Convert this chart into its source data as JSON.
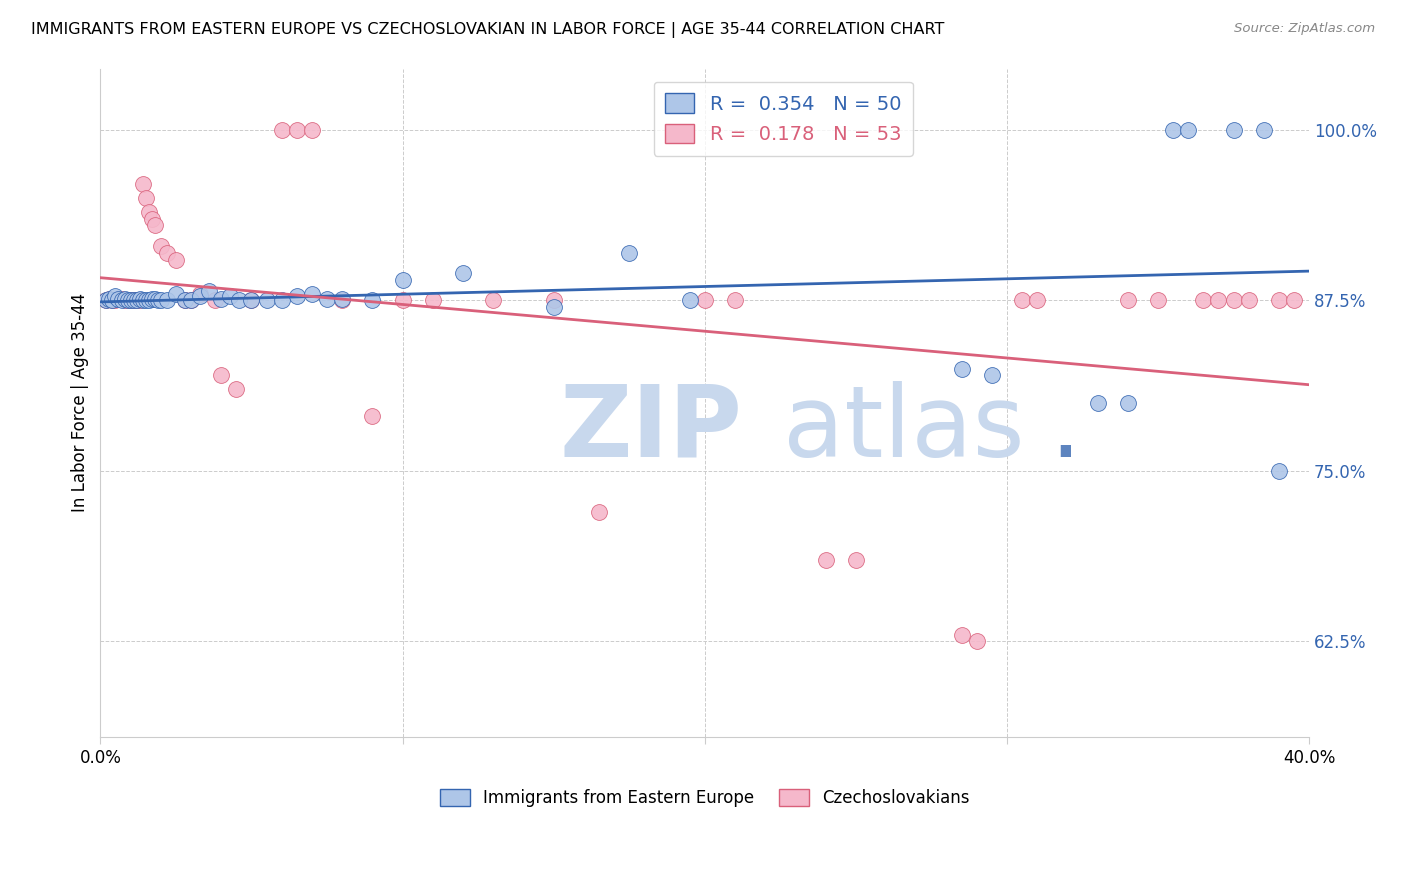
{
  "title": "IMMIGRANTS FROM EASTERN EUROPE VS CZECHOSLOVAKIAN IN LABOR FORCE | AGE 35-44 CORRELATION CHART",
  "source": "Source: ZipAtlas.com",
  "ylabel": "In Labor Force | Age 35-44",
  "y_ticks": [
    0.625,
    0.75,
    0.875,
    1.0
  ],
  "y_tick_labels": [
    "62.5%",
    "75.0%",
    "87.5%",
    "100.0%"
  ],
  "x_min": 0.0,
  "x_max": 0.4,
  "y_min": 0.555,
  "y_max": 1.045,
  "legend_blue_label": "Immigrants from Eastern Europe",
  "legend_pink_label": "Czechoslovakians",
  "r_blue": 0.354,
  "n_blue": 50,
  "r_pink": 0.178,
  "n_pink": 53,
  "blue_color": "#aec6e8",
  "pink_color": "#f5b8cb",
  "line_blue": "#3465b0",
  "line_pink": "#d9607a",
  "blue_x": [
    0.002,
    0.003,
    0.004,
    0.005,
    0.006,
    0.007,
    0.008,
    0.009,
    0.01,
    0.011,
    0.012,
    0.013,
    0.014,
    0.015,
    0.016,
    0.017,
    0.018,
    0.019,
    0.02,
    0.022,
    0.025,
    0.028,
    0.03,
    0.033,
    0.036,
    0.04,
    0.043,
    0.046,
    0.05,
    0.055,
    0.06,
    0.065,
    0.07,
    0.075,
    0.08,
    0.09,
    0.1,
    0.12,
    0.15,
    0.175,
    0.195,
    0.285,
    0.295,
    0.33,
    0.34,
    0.355,
    0.36,
    0.375,
    0.385,
    0.39
  ],
  "blue_y": [
    0.875,
    0.876,
    0.875,
    0.878,
    0.876,
    0.875,
    0.876,
    0.875,
    0.875,
    0.875,
    0.875,
    0.876,
    0.875,
    0.875,
    0.875,
    0.876,
    0.876,
    0.875,
    0.875,
    0.875,
    0.88,
    0.875,
    0.875,
    0.878,
    0.882,
    0.876,
    0.878,
    0.875,
    0.875,
    0.875,
    0.875,
    0.878,
    0.88,
    0.876,
    0.876,
    0.875,
    0.89,
    0.895,
    0.87,
    0.91,
    0.875,
    0.825,
    0.82,
    0.8,
    0.8,
    1.0,
    1.0,
    1.0,
    1.0,
    0.75
  ],
  "pink_x": [
    0.002,
    0.003,
    0.004,
    0.005,
    0.006,
    0.007,
    0.008,
    0.009,
    0.01,
    0.011,
    0.012,
    0.013,
    0.014,
    0.015,
    0.016,
    0.017,
    0.018,
    0.02,
    0.022,
    0.025,
    0.028,
    0.03,
    0.033,
    0.038,
    0.04,
    0.045,
    0.05,
    0.06,
    0.065,
    0.07,
    0.08,
    0.09,
    0.1,
    0.11,
    0.13,
    0.15,
    0.165,
    0.2,
    0.21,
    0.24,
    0.25,
    0.285,
    0.29,
    0.305,
    0.31,
    0.34,
    0.35,
    0.365,
    0.37,
    0.375,
    0.38,
    0.39,
    0.395
  ],
  "pink_y": [
    0.875,
    0.876,
    0.875,
    0.875,
    0.876,
    0.876,
    0.875,
    0.875,
    0.875,
    0.875,
    0.875,
    0.875,
    0.96,
    0.95,
    0.94,
    0.935,
    0.93,
    0.915,
    0.91,
    0.905,
    0.875,
    0.875,
    0.88,
    0.875,
    0.82,
    0.81,
    0.875,
    1.0,
    1.0,
    1.0,
    0.875,
    0.79,
    0.875,
    0.875,
    0.875,
    0.875,
    0.72,
    0.875,
    0.875,
    0.685,
    0.685,
    0.63,
    0.625,
    0.875,
    0.875,
    0.875,
    0.875,
    0.875,
    0.875,
    0.875,
    0.875,
    0.875,
    0.875
  ]
}
